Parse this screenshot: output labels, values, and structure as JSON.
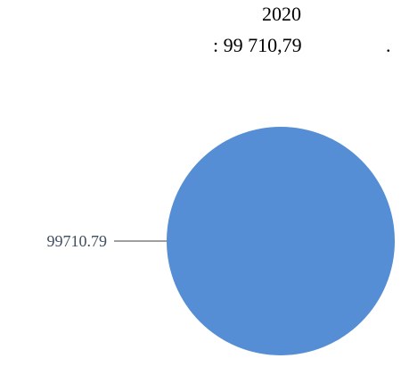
{
  "chart_data": {
    "type": "pie",
    "title_line_1": "2020",
    "title_line_2": ": 99 710,79",
    "title_trailing": ".",
    "slices": [
      {
        "label": "99710.79",
        "value": 99710.79,
        "color": "#558ED5"
      }
    ],
    "leader_line_color": "#404040"
  }
}
